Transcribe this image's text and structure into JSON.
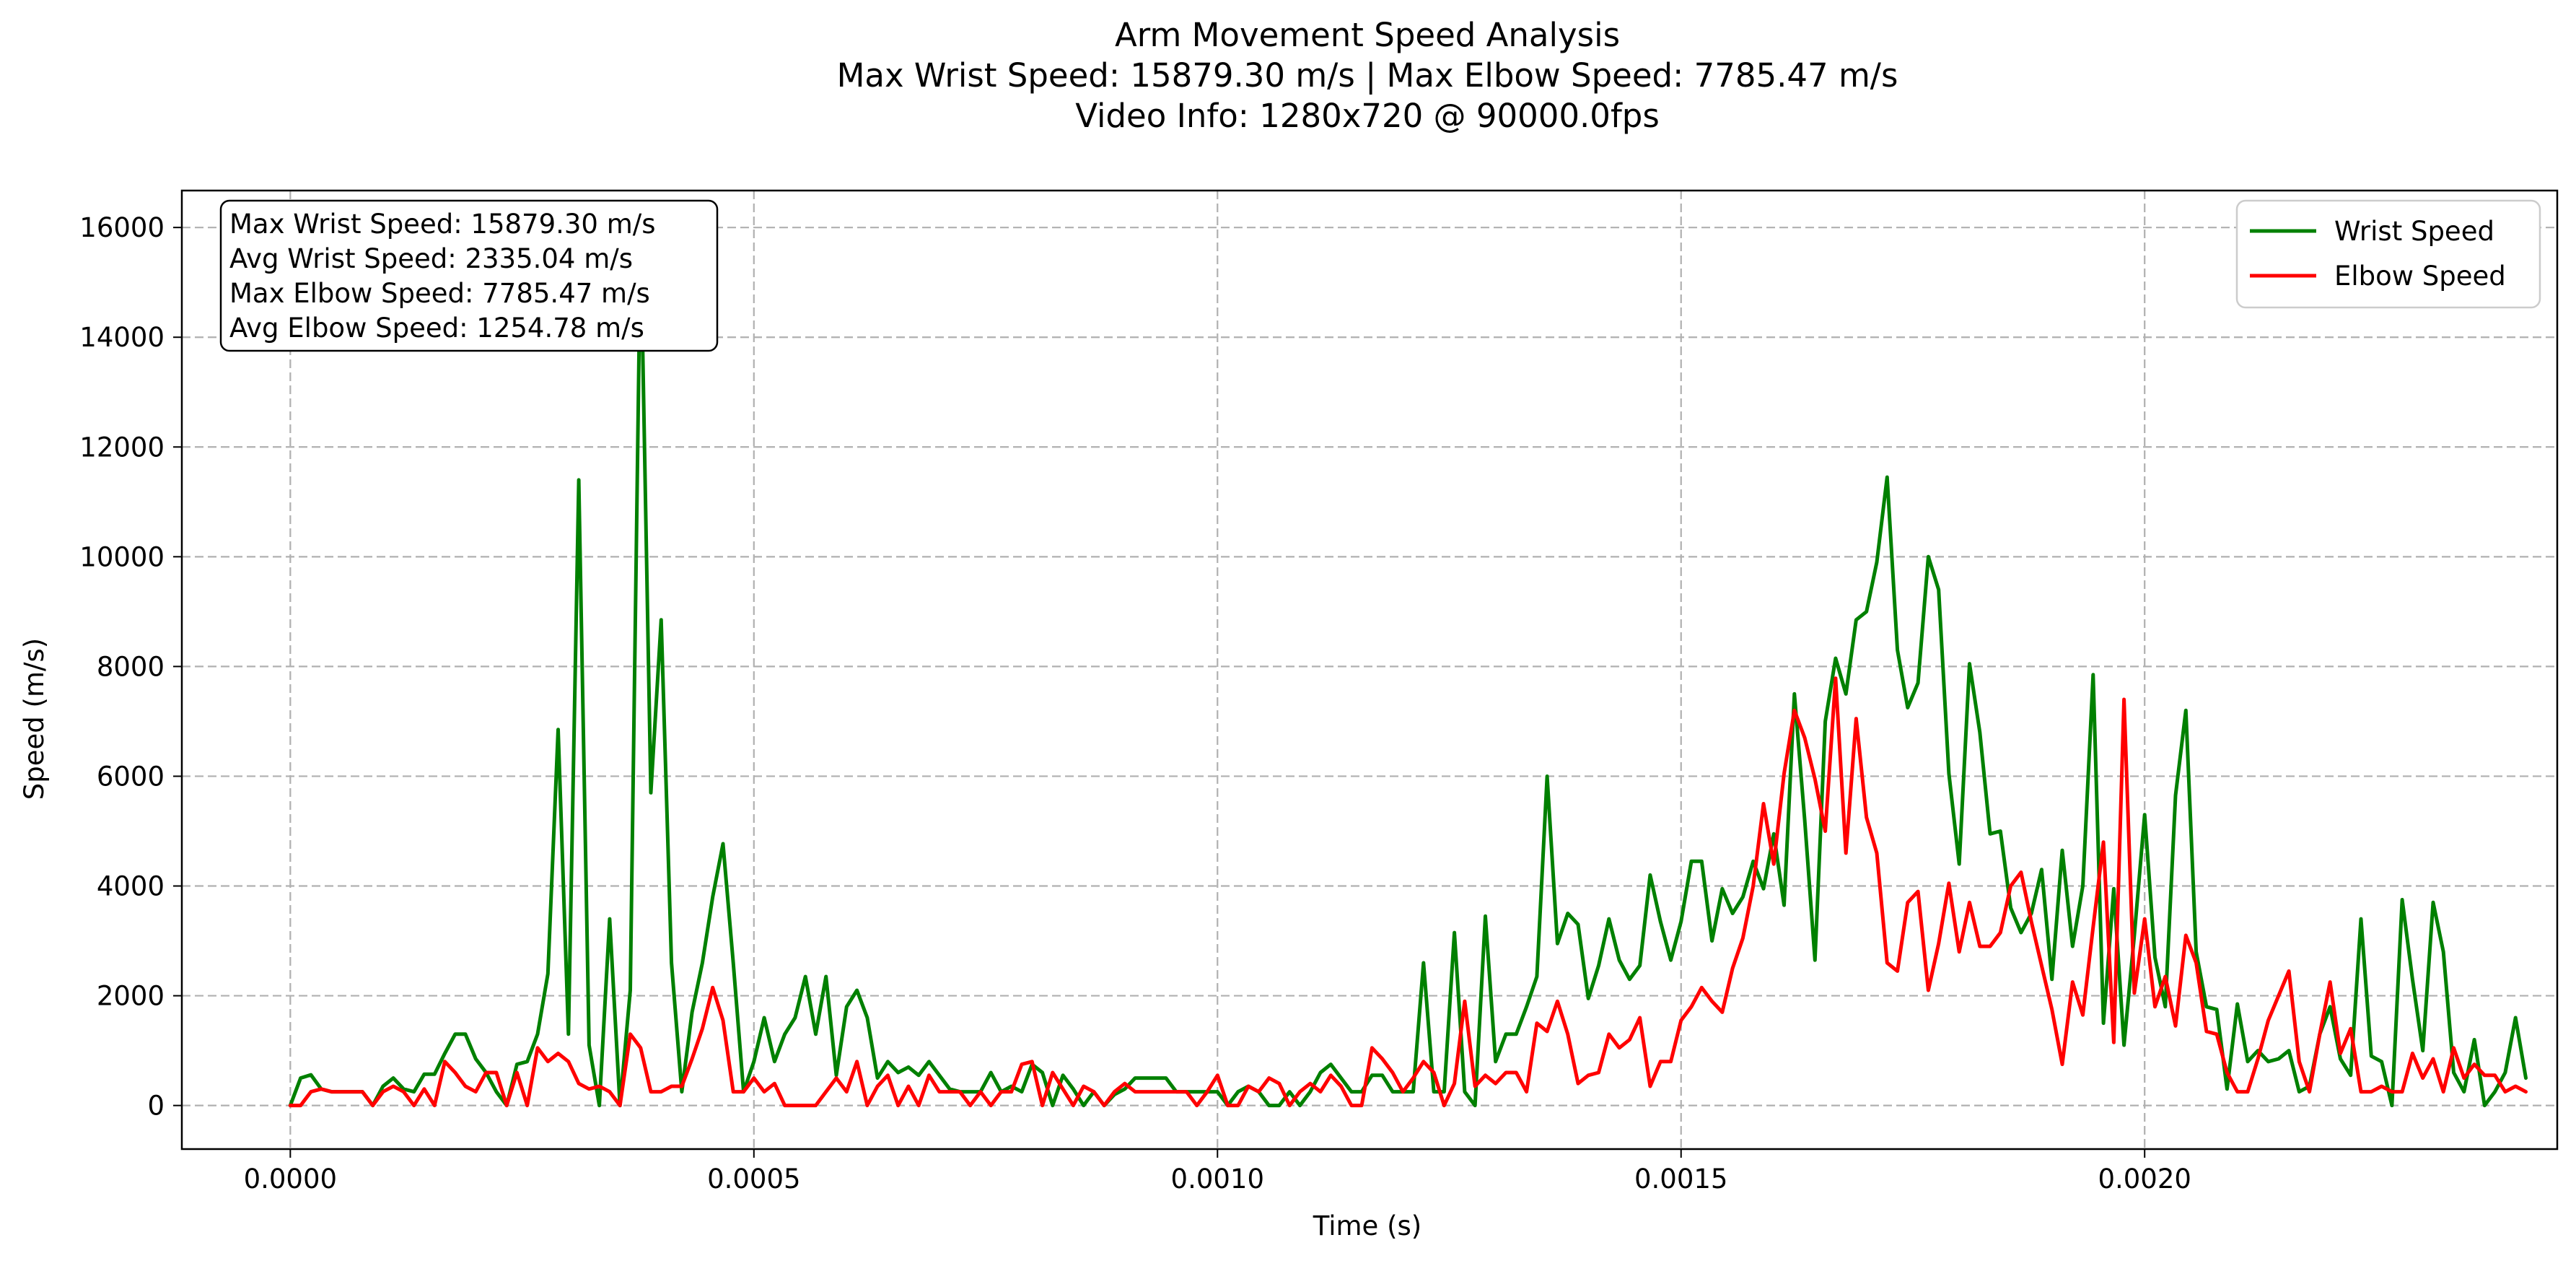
{
  "chart_data": {
    "type": "line",
    "title": "Arm Movement Speed Analysis",
    "subtitle": "Max Wrist Speed: 15879.30 m/s | Max Elbow Speed: 7785.47 m/s",
    "subtitle2": "Video Info: 1280x720 @ 90000.0fps",
    "xlabel": "Time (s)",
    "ylabel": "Speed (m/s)",
    "xlim": [
      -0.000117,
      0.002445
    ],
    "ylim": [
      -794,
      16673
    ],
    "xticks": [
      0.0,
      0.0005,
      0.001,
      0.0015,
      0.002
    ],
    "xtick_labels": [
      "0.0000",
      "0.0005",
      "0.0010",
      "0.0015",
      "0.0020"
    ],
    "yticks": [
      0,
      2000,
      4000,
      6000,
      8000,
      10000,
      12000,
      14000,
      16000
    ],
    "ytick_labels": [
      "0",
      "2000",
      "4000",
      "6000",
      "8000",
      "10000",
      "12000",
      "14000",
      "16000"
    ],
    "grid": true,
    "legend_position": "top-right",
    "stats_box": [
      "Max Wrist Speed: 15879.30 m/s",
      "Avg Wrist Speed: 2335.04 m/s",
      "Max Elbow Speed: 7785.47 m/s",
      "Avg Elbow Speed: 1254.78 m/s"
    ],
    "time_step": 1.11111e-05,
    "series": [
      {
        "name": "Wrist Speed",
        "color": "#008000",
        "values": [
          0,
          500,
          560,
          300,
          250,
          250,
          250,
          250,
          0,
          350,
          500,
          300,
          250,
          570,
          570,
          950,
          1300,
          1300,
          850,
          600,
          250,
          0,
          750,
          800,
          1300,
          2400,
          6850,
          1300,
          11400,
          1100,
          0,
          3400,
          0,
          2100,
          15879,
          5700,
          8850,
          2600,
          250,
          1700,
          2600,
          3800,
          4770,
          2600,
          250,
          800,
          1600,
          800,
          1300,
          1600,
          2350,
          1300,
          2350,
          550,
          1800,
          2100,
          1600,
          500,
          800,
          600,
          700,
          550,
          800,
          550,
          300,
          250,
          250,
          250,
          600,
          250,
          350,
          250,
          750,
          600,
          0,
          550,
          300,
          0,
          250,
          0,
          200,
          300,
          500,
          500,
          500,
          500,
          250,
          250,
          250,
          250,
          250,
          0,
          250,
          350,
          250,
          0,
          0,
          250,
          0,
          250,
          600,
          750,
          500,
          250,
          250,
          550,
          550,
          250,
          250,
          250,
          2600,
          250,
          250,
          3150,
          250,
          0,
          3450,
          800,
          1300,
          1300,
          1800,
          2350,
          6000,
          2950,
          3500,
          3300,
          1950,
          2550,
          3400,
          2650,
          2300,
          2550,
          4200,
          3350,
          2650,
          3350,
          4450,
          4450,
          3000,
          3950,
          3500,
          3800,
          4450,
          3950,
          4950,
          3650,
          7500,
          5200,
          2650,
          7000,
          8150,
          7500,
          8850,
          9000,
          9900,
          11450,
          8300,
          7250,
          7700,
          10000,
          9400,
          6050,
          4400,
          8050,
          6800,
          4950,
          5000,
          3600,
          3150,
          3500,
          4300,
          2300,
          4650,
          2900,
          4000,
          7850,
          1500,
          3950,
          1100,
          3100,
          5300,
          2700,
          1800,
          5650,
          7200,
          2800,
          1800,
          1750,
          300,
          1850,
          800,
          1000,
          800,
          850,
          1000,
          250,
          350,
          1300,
          1800,
          850,
          550,
          3400,
          900,
          800,
          0,
          3750,
          2300,
          1000,
          3700,
          2800,
          600,
          250,
          1200,
          0,
          250,
          600,
          1600,
          500
        ]
      },
      {
        "name": "Elbow Speed",
        "color": "#ff0000",
        "values": [
          0,
          0,
          250,
          300,
          250,
          250,
          250,
          250,
          0,
          250,
          350,
          250,
          0,
          300,
          0,
          800,
          600,
          350,
          250,
          600,
          600,
          0,
          600,
          0,
          1050,
          800,
          950,
          800,
          400,
          300,
          350,
          250,
          0,
          1300,
          1050,
          250,
          250,
          350,
          350,
          850,
          1400,
          2150,
          1550,
          250,
          250,
          500,
          250,
          400,
          0,
          0,
          0,
          0,
          250,
          500,
          250,
          800,
          0,
          350,
          550,
          0,
          350,
          0,
          550,
          250,
          250,
          250,
          0,
          250,
          0,
          250,
          250,
          750,
          800,
          0,
          600,
          300,
          0,
          350,
          250,
          0,
          250,
          400,
          250,
          250,
          250,
          250,
          250,
          250,
          0,
          250,
          550,
          0,
          0,
          350,
          250,
          500,
          400,
          0,
          250,
          400,
          250,
          550,
          350,
          0,
          0,
          1050,
          850,
          600,
          250,
          500,
          800,
          600,
          0,
          400,
          1900,
          350,
          550,
          400,
          600,
          600,
          250,
          1500,
          1350,
          1900,
          1300,
          400,
          550,
          600,
          1300,
          1050,
          1200,
          1600,
          350,
          800,
          800,
          1550,
          1800,
          2150,
          1900,
          1700,
          2500,
          3050,
          4000,
          5500,
          4400,
          6050,
          7200,
          6700,
          5950,
          5000,
          7785,
          4600,
          7050,
          5250,
          4600,
          2600,
          2450,
          3700,
          3900,
          2100,
          2950,
          4050,
          2800,
          3700,
          2900,
          2900,
          3150,
          4000,
          4250,
          3350,
          2550,
          1750,
          750,
          2250,
          1650,
          3250,
          4800,
          1150,
          7400,
          2050,
          3400,
          1800,
          2350,
          1450,
          3100,
          2600,
          1350,
          1300,
          600,
          250,
          250,
          850,
          1550,
          2000,
          2450,
          800,
          250,
          1300,
          2250,
          950,
          1400,
          250,
          250,
          350,
          250,
          250,
          950,
          500,
          850,
          250,
          1050,
          500,
          750,
          550,
          550,
          250,
          350,
          250
        ]
      }
    ]
  }
}
